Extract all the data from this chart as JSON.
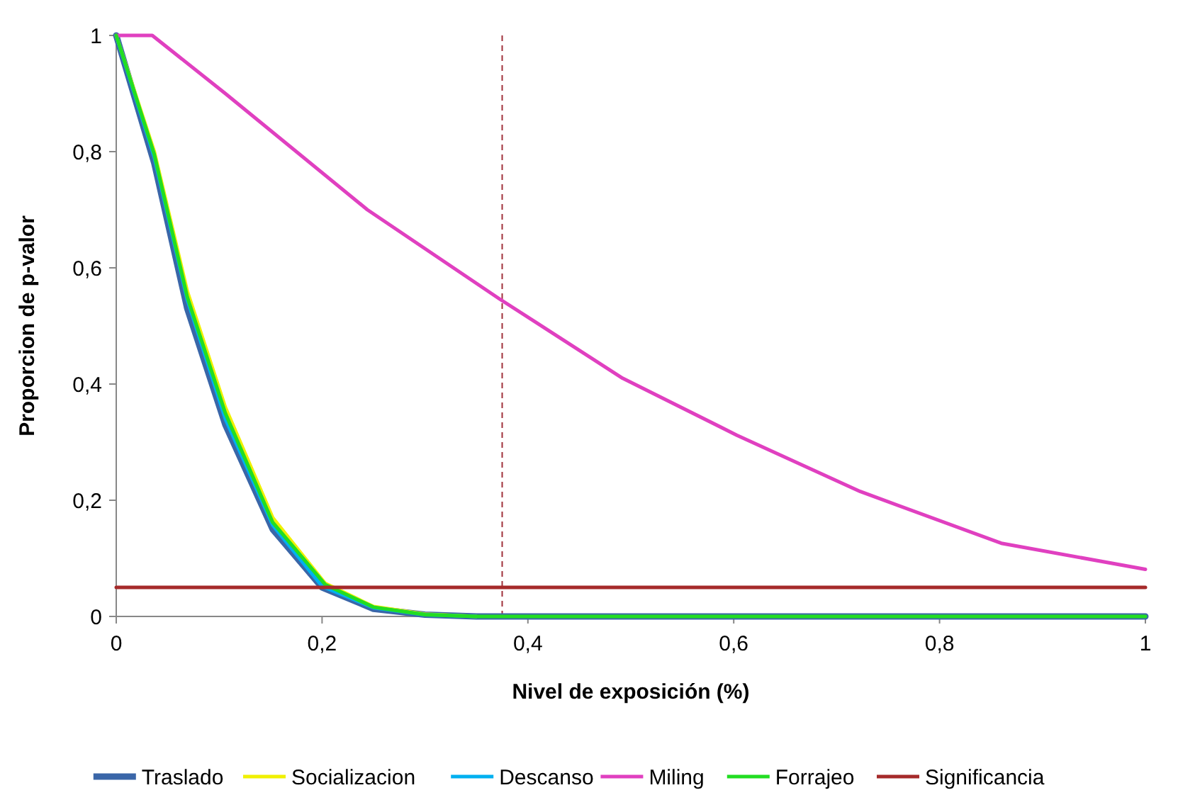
{
  "chart_data": {
    "type": "line",
    "xlabel": "Nivel de exposición (%)",
    "ylabel": "Proporcion de p-valor",
    "xlim": [
      0,
      1
    ],
    "ylim": [
      0,
      1
    ],
    "xticks": [
      {
        "value": 0,
        "label": "0"
      },
      {
        "value": 0.2,
        "label": "0,2"
      },
      {
        "value": 0.4,
        "label": "0,4"
      },
      {
        "value": 0.6,
        "label": "0,6"
      },
      {
        "value": 0.8,
        "label": "0,8"
      },
      {
        "value": 1,
        "label": "1"
      }
    ],
    "yticks": [
      {
        "value": 0,
        "label": "0"
      },
      {
        "value": 0.2,
        "label": "0,2"
      },
      {
        "value": 0.4,
        "label": "0,4"
      },
      {
        "value": 0.6,
        "label": "0,6"
      },
      {
        "value": 0.8,
        "label": "0,8"
      },
      {
        "value": 1,
        "label": "1"
      }
    ],
    "grid": false,
    "legend": "bottom",
    "marker": "none",
    "ref_lines": [
      {
        "axis": "x",
        "value": 0.375,
        "color": "#a0303a",
        "line_style": "dashed"
      }
    ],
    "series": [
      {
        "name": "Traslado",
        "color": "#3a66a8",
        "x": [
          0,
          0.037,
          0.069,
          0.106,
          0.152,
          0.2,
          0.25,
          0.3,
          0.35,
          0.4,
          1
        ],
        "values": [
          1,
          0.78,
          0.53,
          0.33,
          0.15,
          0.05,
          0.013,
          0.003,
          0,
          0,
          0
        ]
      },
      {
        "name": "Socializacion",
        "color": "#f0f000",
        "x": [
          0,
          0.037,
          0.069,
          0.106,
          0.152,
          0.203,
          0.25,
          0.3,
          0.35
        ],
        "values": [
          1,
          0.8,
          0.56,
          0.36,
          0.17,
          0.057,
          0.017,
          0.004,
          0
        ]
      },
      {
        "name": "Descanso",
        "color": "#00b0f0",
        "x": [
          0,
          0.037,
          0.069,
          0.106,
          0.152,
          0.2,
          0.25,
          0.3,
          0.35
        ],
        "values": [
          1,
          0.79,
          0.545,
          0.34,
          0.157,
          0.052,
          0.015,
          0.003,
          0
        ]
      },
      {
        "name": "Miling",
        "color": "#e040c0",
        "x": [
          0,
          0.035,
          0.106,
          0.244,
          0.372,
          0.492,
          0.603,
          0.723,
          0.86,
          1
        ],
        "values": [
          1,
          1,
          0.9,
          0.7,
          0.547,
          0.41,
          0.312,
          0.215,
          0.126,
          0.081
        ]
      },
      {
        "name": "Forrajeo",
        "color": "#22dd22",
        "x": [
          0,
          0.037,
          0.069,
          0.106,
          0.152,
          0.203,
          0.25,
          0.3,
          0.35,
          0.4,
          1
        ],
        "values": [
          1,
          0.795,
          0.55,
          0.35,
          0.162,
          0.055,
          0.016,
          0.003,
          0,
          0,
          0
        ]
      },
      {
        "name": "Significancia",
        "color": "#a52a2a",
        "x": [
          0,
          1
        ],
        "values": [
          0.05,
          0.05
        ]
      }
    ]
  }
}
